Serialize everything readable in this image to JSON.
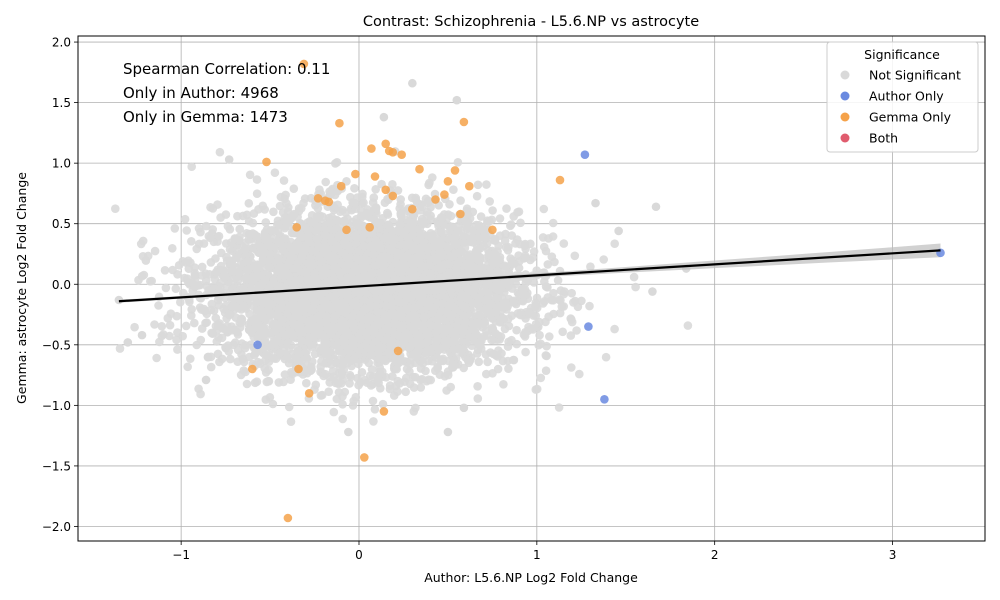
{
  "chart_data": {
    "type": "scatter",
    "title": "Contrast: Schizophrenia - L5.6.NP vs astrocyte",
    "xlabel": "Author: L5.6.NP Log2 Fold Change",
    "ylabel": "Gemma: astrocyte Log2 Fold Change",
    "xlim": [
      -1.58,
      3.52
    ],
    "ylim": [
      -2.12,
      2.05
    ],
    "xticks": [
      -1,
      0,
      1,
      2,
      3
    ],
    "yticks": [
      -2.0,
      -1.5,
      -1.0,
      -0.5,
      0.0,
      0.5,
      1.0,
      1.5,
      2.0
    ],
    "xtick_labels": [
      "−1",
      "0",
      "1",
      "2",
      "3"
    ],
    "ytick_labels": [
      "−2.0",
      "−1.5",
      "−1.0",
      "−0.5",
      "0.0",
      "0.5",
      "1.0",
      "1.5",
      "2.0"
    ],
    "grid": true,
    "annotations": [
      "Spearman Correlation: 0.11",
      "Only in Author: 4968",
      "Only in Gemma: 1473"
    ],
    "legend": {
      "title": "Significance",
      "placement": "top-right",
      "entries": [
        "Not Significant",
        "Author Only",
        "Gemma Only",
        "Both"
      ]
    },
    "regression": {
      "x": [
        -1.35,
        3.27
      ],
      "y": [
        -0.14,
        0.28
      ]
    },
    "series": [
      {
        "name": "Author Only",
        "color": "#6a8ae0",
        "points": [
          [
            1.27,
            1.07
          ],
          [
            3.27,
            0.26
          ],
          [
            1.29,
            -0.35
          ],
          [
            1.38,
            -0.95
          ],
          [
            -0.57,
            -0.5
          ]
        ]
      },
      {
        "name": "Gemma Only",
        "color": "#f5a24a",
        "points": [
          [
            -0.31,
            1.82
          ],
          [
            -0.11,
            1.33
          ],
          [
            0.59,
            1.34
          ],
          [
            0.15,
            1.16
          ],
          [
            0.07,
            1.12
          ],
          [
            0.17,
            1.1
          ],
          [
            0.19,
            1.09
          ],
          [
            0.24,
            1.07
          ],
          [
            -0.52,
            1.01
          ],
          [
            0.34,
            0.95
          ],
          [
            0.54,
            0.94
          ],
          [
            -0.02,
            0.91
          ],
          [
            0.09,
            0.89
          ],
          [
            0.5,
            0.85
          ],
          [
            1.13,
            0.86
          ],
          [
            0.62,
            0.81
          ],
          [
            -0.1,
            0.81
          ],
          [
            0.15,
            0.78
          ],
          [
            0.19,
            0.73
          ],
          [
            0.48,
            0.74
          ],
          [
            0.43,
            0.7
          ],
          [
            -0.19,
            0.69
          ],
          [
            -0.17,
            0.68
          ],
          [
            0.57,
            0.58
          ],
          [
            -0.23,
            0.71
          ],
          [
            0.75,
            0.45
          ],
          [
            -0.35,
            0.47
          ],
          [
            -0.6,
            -0.7
          ],
          [
            -0.34,
            -0.7
          ],
          [
            -0.28,
            -0.9
          ],
          [
            0.22,
            -0.55
          ],
          [
            0.14,
            -1.05
          ],
          [
            0.03,
            -1.43
          ],
          [
            -0.4,
            -1.93
          ],
          [
            0.3,
            0.62
          ],
          [
            -0.07,
            0.45
          ],
          [
            0.06,
            0.47
          ]
        ]
      },
      {
        "name": "Both",
        "color": "#e05c6e",
        "points": []
      }
    ],
    "background_cloud": {
      "name": "Not Significant",
      "color": "#d9d9d9",
      "approx_count": 6000,
      "x_center": 0.05,
      "y_center": -0.05,
      "x_spread": 0.42,
      "y_spread": 0.32,
      "outliers": [
        [
          0.3,
          1.66
        ],
        [
          0.55,
          1.52
        ],
        [
          0.14,
          1.38
        ],
        [
          -0.73,
          1.03
        ],
        [
          1.67,
          0.64
        ],
        [
          1.33,
          0.67
        ],
        [
          1.46,
          0.44
        ],
        [
          1.84,
          0.13
        ],
        [
          1.65,
          -0.06
        ],
        [
          -1.3,
          -0.48
        ],
        [
          -1.22,
          -0.42
        ],
        [
          -1.35,
          -0.13
        ],
        [
          0.5,
          -1.22
        ],
        [
          -0.06,
          -1.22
        ],
        [
          0.59,
          -1.02
        ],
        [
          -0.86,
          -0.79
        ]
      ]
    }
  }
}
